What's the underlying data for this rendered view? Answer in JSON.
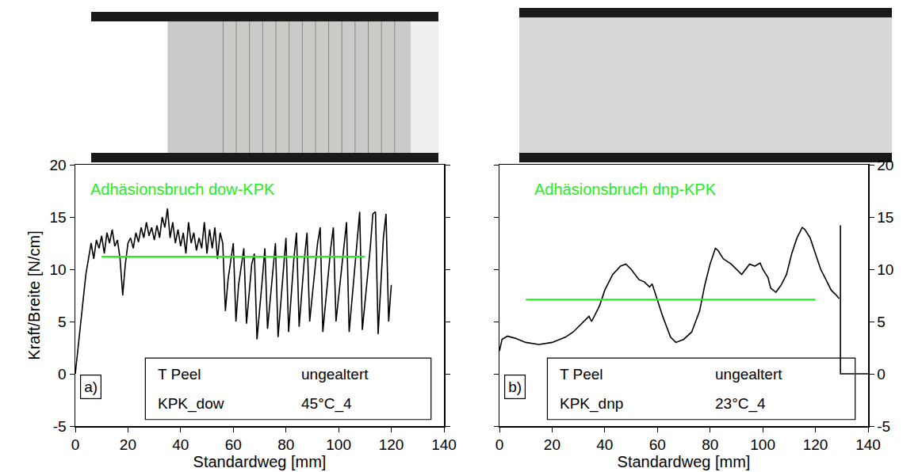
{
  "chart_data": [
    {
      "type": "line",
      "title": "Adhäsionsbruch dow-KPK",
      "xlabel": "Standardweg [mm]",
      "ylabel": "Kraft/Breite [N/cm]",
      "panel": "a)",
      "box": [
        [
          "T Peel",
          "ungealtert"
        ],
        [
          "KPK_dow",
          "45°C_4"
        ]
      ],
      "xlim": [
        0,
        140
      ],
      "xticks": [
        0,
        20,
        40,
        60,
        80,
        100,
        120,
        140
      ],
      "ylim": [
        -5,
        20
      ],
      "yticks": [
        -5,
        0,
        5,
        10,
        15,
        20
      ],
      "series": [
        {
          "color": "#000000",
          "x": [
            0,
            2,
            4,
            5,
            6,
            7,
            8,
            9,
            10,
            11,
            12,
            13,
            14,
            15,
            16,
            17,
            18,
            19,
            20,
            21,
            22,
            23,
            24,
            25,
            26,
            27,
            28,
            29,
            30,
            31,
            32,
            33,
            34,
            35,
            36,
            37,
            38,
            39,
            40,
            41,
            42,
            43,
            44,
            45,
            46,
            47,
            48,
            49,
            50,
            51,
            52,
            53,
            54,
            55,
            56,
            57,
            58,
            60,
            61,
            62,
            64,
            65,
            67,
            68,
            69,
            71,
            72,
            73,
            75,
            76,
            77,
            79,
            80,
            81,
            83,
            84,
            85,
            87,
            88,
            89,
            92,
            93,
            94,
            97,
            98,
            99,
            102,
            103,
            104,
            107,
            108,
            109,
            112,
            113,
            114,
            115,
            117,
            118,
            119,
            120
          ],
          "values": [
            0,
            5,
            9.5,
            11,
            12.5,
            11,
            12.8,
            12,
            13.2,
            11.5,
            13.5,
            12.5,
            13.8,
            12.2,
            12.8,
            11,
            7.5,
            10.5,
            12.5,
            13,
            12,
            13.5,
            12.6,
            14,
            13,
            14.5,
            13.2,
            14,
            12.8,
            14.2,
            13,
            15,
            14,
            15.8,
            13,
            14.5,
            12.5,
            13.8,
            12.2,
            13.5,
            11.5,
            14.5,
            12.5,
            13.5,
            11.8,
            13,
            12,
            14.5,
            11.5,
            13.8,
            12,
            14,
            11,
            13.5,
            12.5,
            6,
            9,
            12.5,
            5,
            8.5,
            12,
            4.8,
            10.5,
            11.5,
            3.3,
            9,
            12,
            4.3,
            10,
            12.5,
            3.5,
            10,
            13,
            4,
            11,
            13.5,
            4.5,
            11,
            13.5,
            5,
            12.5,
            14,
            4,
            12,
            14,
            5,
            12.5,
            14.5,
            4,
            13,
            15.5,
            4.2,
            12,
            15.3,
            15.5,
            3.8,
            13,
            15.3,
            5,
            8.5
          ]
        },
        {
          "color": "#22ee22",
          "x": [
            10,
            110
          ],
          "values": [
            11.2,
            11.2
          ]
        }
      ]
    },
    {
      "type": "line",
      "title": "Adhäsionsbruch dnp-KPK",
      "xlabel": "Standardweg [mm]",
      "panel": "b)",
      "box": [
        [
          "T Peel",
          "ungealtert"
        ],
        [
          "KPK_dnp",
          "23°C_4"
        ]
      ],
      "xlim": [
        0,
        140
      ],
      "xticks": [
        0,
        20,
        40,
        60,
        80,
        100,
        120,
        140
      ],
      "ylim": [
        -5,
        20
      ],
      "yticks": [
        -5,
        0,
        5,
        10,
        15,
        20
      ],
      "series": [
        {
          "color": "#000000",
          "x": [
            0,
            1,
            3,
            6,
            10,
            15,
            20,
            25,
            28,
            32,
            34,
            35,
            38,
            40,
            43,
            46,
            48,
            50,
            53,
            55,
            57,
            58,
            60,
            62,
            65,
            67,
            70,
            73,
            76,
            78,
            80,
            82,
            83,
            85,
            88,
            90,
            92,
            95,
            97,
            99,
            100,
            102,
            103,
            105,
            107,
            109,
            111,
            113,
            115,
            116,
            118,
            120,
            122,
            124,
            126,
            128,
            129,
            129.3,
            129.5,
            129.5,
            140
          ],
          "values": [
            2.2,
            3.3,
            3.6,
            3.4,
            3,
            2.8,
            3,
            3.5,
            4,
            5,
            5.5,
            5,
            6.5,
            8,
            9.5,
            10.3,
            10.5,
            10,
            9,
            8.8,
            8.3,
            8.6,
            7,
            5.5,
            3.5,
            3,
            3.3,
            4,
            6,
            8.5,
            10.5,
            12,
            11.8,
            11,
            10.5,
            10,
            9.5,
            10.5,
            10.3,
            10.6,
            10,
            9.2,
            8.2,
            7.8,
            8.5,
            9.5,
            11.5,
            13,
            14,
            13.8,
            13,
            11.5,
            10,
            9,
            8,
            7.5,
            7.2,
            null,
            14.2,
            0,
            0
          ]
        },
        {
          "color": "#22ee22",
          "x": [
            10,
            120
          ],
          "values": [
            7.1,
            7.1
          ]
        }
      ]
    }
  ]
}
